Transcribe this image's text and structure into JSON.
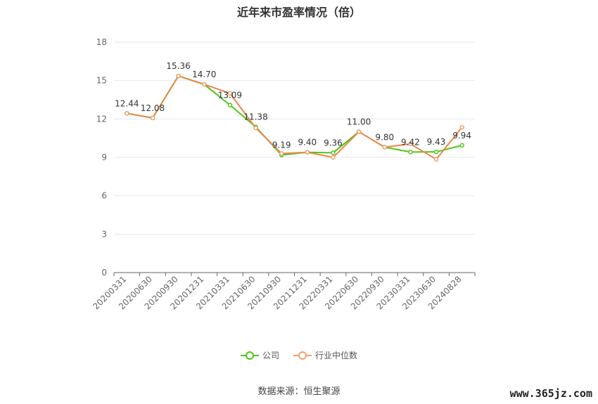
{
  "chart_data": {
    "type": "line",
    "title": "近年来市盈率情况（倍）",
    "categories": [
      "20200331",
      "20200630",
      "20200930",
      "20201231",
      "20210331",
      "20210630",
      "20210930",
      "20211231",
      "20220331",
      "20220630",
      "20220930",
      "20230331",
      "20230630",
      "20240828"
    ],
    "series": [
      {
        "name": "公司",
        "color": "#52c41a",
        "values": [
          12.44,
          12.08,
          15.36,
          14.7,
          13.09,
          11.38,
          9.19,
          9.4,
          9.36,
          11.0,
          9.8,
          9.42,
          9.43,
          9.94
        ],
        "labels": [
          "12.44",
          "12.08",
          "15.36",
          "14.70",
          "13.09",
          "11.38",
          "9.19",
          "9.40",
          "9.36",
          "11.00",
          "9.80",
          "9.42",
          "9.43",
          "9.94"
        ]
      },
      {
        "name": "行业中位数",
        "color": "#f0a070",
        "line_color": "#e8894a",
        "values": [
          12.44,
          12.08,
          15.36,
          14.7,
          14.0,
          11.3,
          9.3,
          9.4,
          9.0,
          11.0,
          9.8,
          10.05,
          8.85,
          11.35
        ]
      }
    ],
    "ylim": [
      0,
      18
    ],
    "yticks": [
      0,
      3,
      6,
      9,
      12,
      15,
      18
    ],
    "grid": true,
    "legend_position": "bottom"
  },
  "source_text": "数据来源：恒生聚源",
  "watermark": "www.365jz.com"
}
